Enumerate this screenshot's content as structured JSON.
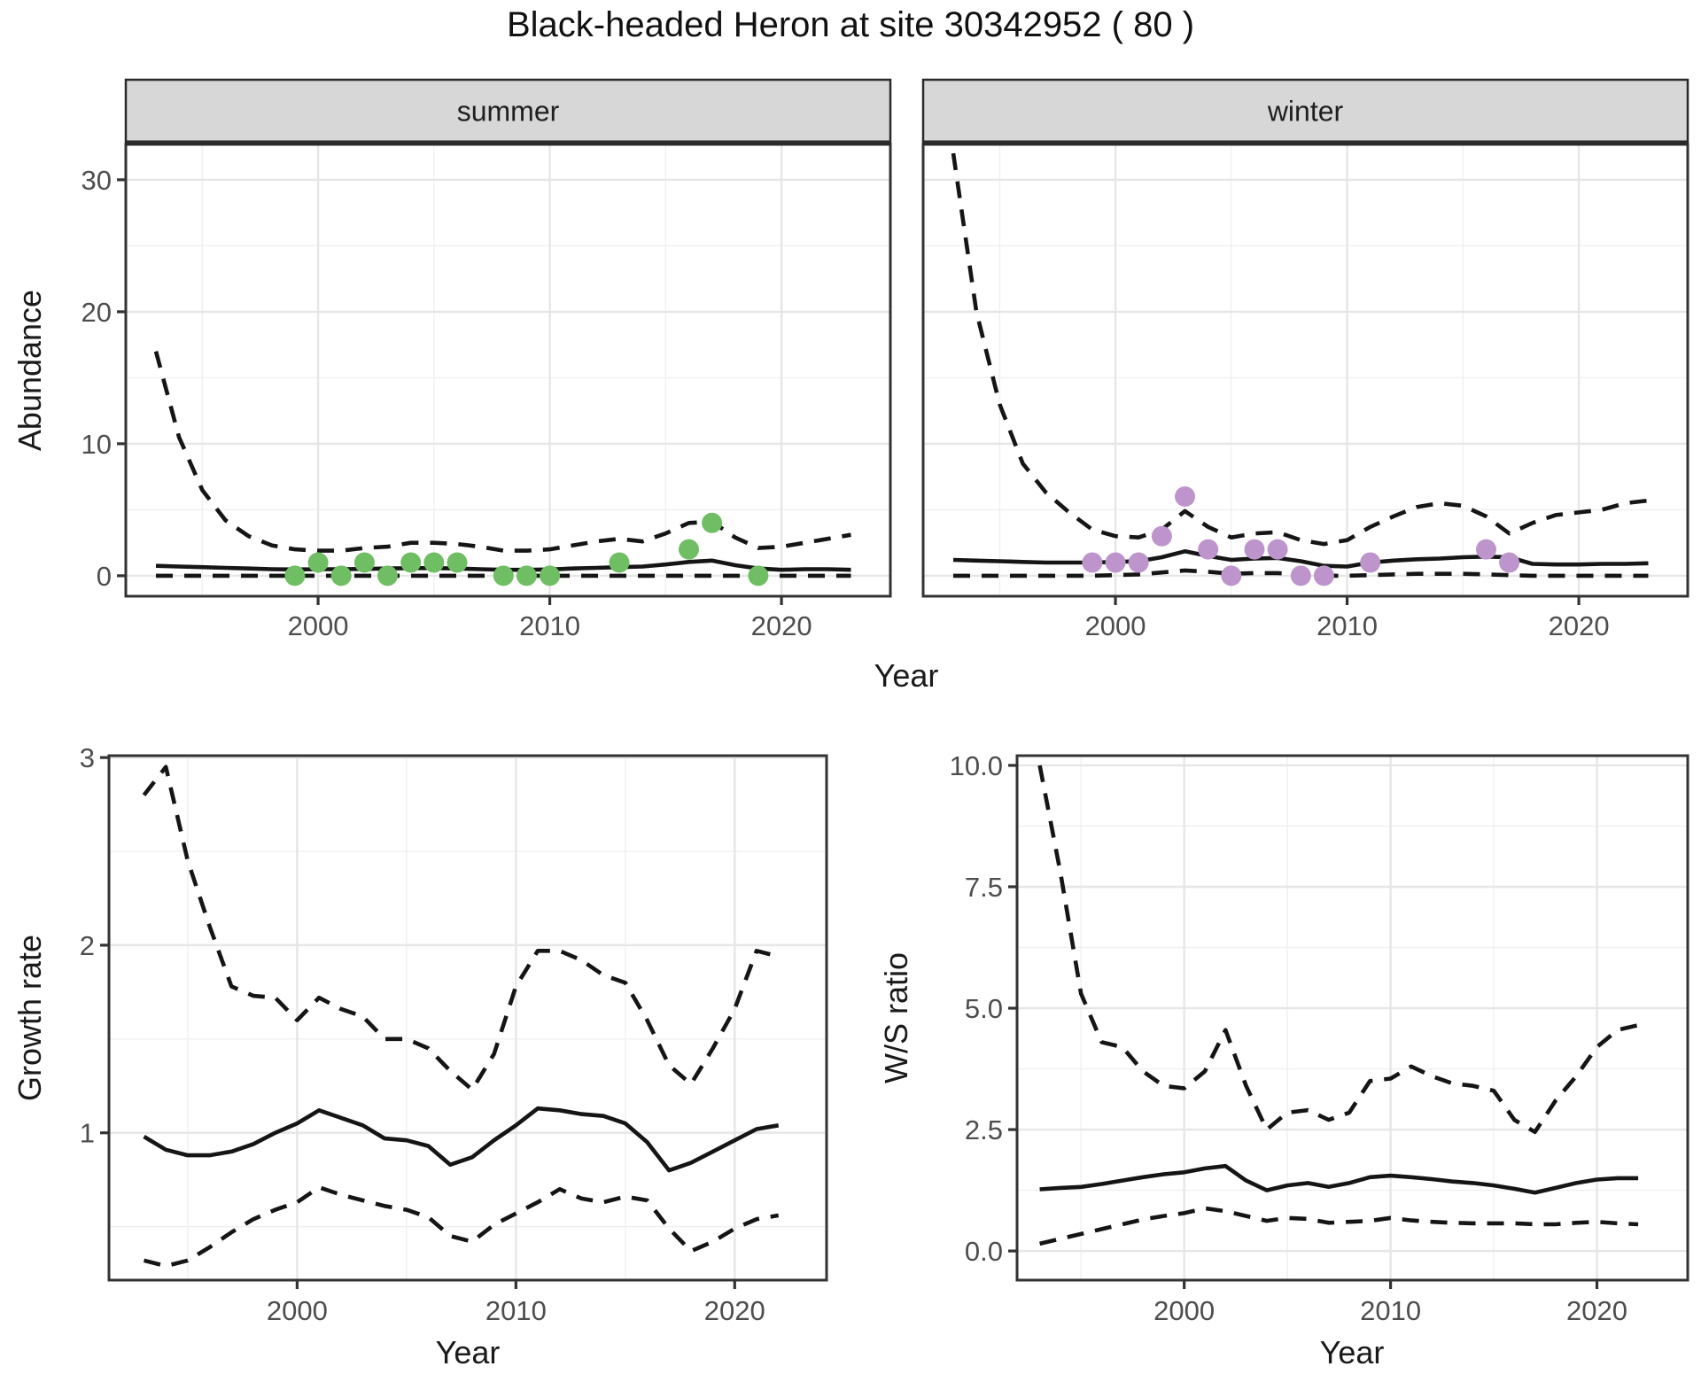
{
  "title": "Black-headed Heron at site 30342952 ( 80 )",
  "labels": {
    "top_y": "Abundance",
    "top_x": "Year",
    "growth_y": "Growth rate",
    "growth_x": "Year",
    "ws_y": "W/S ratio",
    "ws_x": "Year"
  },
  "colors": {
    "line": "#151515",
    "summer_point": "#6fbe63",
    "winter_point": "#bd95cc",
    "tick_text": "#4d4d4d",
    "strip_bg": "#d7d7d7",
    "strip_border": "#2a2a2a",
    "panel_border": "#333333",
    "grid_major": "#e6e6e6",
    "grid_minor": "#f0f0f0"
  },
  "chart_data": [
    {
      "id": "abundance-summer",
      "type": "line",
      "facet_label": "summer",
      "xlabel": "Year",
      "ylabel": "Abundance",
      "x_ticks": [
        2000,
        2010,
        2020
      ],
      "x_tick_labels": [
        "2000",
        "2010",
        "2020"
      ],
      "x_minor_ticks": [
        1995,
        2005,
        2015
      ],
      "y_ticks": [
        0,
        10,
        20,
        30
      ],
      "y_tick_labels": [
        "0",
        "10",
        "20",
        "30"
      ],
      "y_minor_ticks": [
        5,
        15,
        25
      ],
      "xlim": [
        1991.7,
        2024.7
      ],
      "ylim": [
        -1.55,
        32.68
      ],
      "years": [
        1993,
        1994,
        1995,
        1996,
        1997,
        1998,
        1999,
        2000,
        2001,
        2002,
        2003,
        2004,
        2005,
        2006,
        2007,
        2008,
        2009,
        2010,
        2011,
        2012,
        2013,
        2014,
        2015,
        2016,
        2017,
        2018,
        2019,
        2020,
        2021,
        2022,
        2023
      ],
      "series": [
        {
          "name": "ci_upper",
          "style": "dashed",
          "values": [
            17,
            10.5,
            6.5,
            4.2,
            3.0,
            2.3,
            2.0,
            1.9,
            1.9,
            2.1,
            2.2,
            2.5,
            2.5,
            2.4,
            2.2,
            1.9,
            1.9,
            2.0,
            2.3,
            2.6,
            2.8,
            2.6,
            3.2,
            4.0,
            4.1,
            2.9,
            2.1,
            2.2,
            2.5,
            2.8,
            3.1
          ]
        },
        {
          "name": "ci_lower",
          "style": "dashed",
          "values": [
            0,
            0,
            0,
            0,
            0,
            0,
            0,
            0,
            0,
            0,
            0,
            0,
            0,
            0,
            0,
            0,
            0,
            0,
            0,
            0,
            0,
            0,
            0,
            0,
            0,
            0,
            0,
            0,
            0,
            0,
            0
          ]
        },
        {
          "name": "mean",
          "style": "solid",
          "values": [
            0.75,
            0.7,
            0.65,
            0.6,
            0.55,
            0.5,
            0.48,
            0.5,
            0.5,
            0.52,
            0.55,
            0.58,
            0.58,
            0.55,
            0.5,
            0.45,
            0.45,
            0.48,
            0.55,
            0.6,
            0.65,
            0.7,
            0.85,
            1.05,
            1.15,
            0.8,
            0.55,
            0.45,
            0.5,
            0.5,
            0.45
          ]
        }
      ],
      "points": {
        "name": "observed_summer_abundance",
        "color_key": "summer_point",
        "xy": [
          [
            1999,
            0
          ],
          [
            2000,
            1
          ],
          [
            2001,
            0
          ],
          [
            2002,
            1
          ],
          [
            2003,
            0
          ],
          [
            2004,
            1
          ],
          [
            2005,
            1
          ],
          [
            2006,
            1
          ],
          [
            2008,
            0
          ],
          [
            2009,
            0
          ],
          [
            2010,
            0
          ],
          [
            2013,
            1
          ],
          [
            2016,
            2
          ],
          [
            2017,
            4
          ],
          [
            2019,
            0
          ]
        ]
      }
    },
    {
      "id": "abundance-winter",
      "type": "line",
      "facet_label": "winter",
      "xlabel": "Year",
      "ylabel": "Abundance",
      "x_ticks": [
        2000,
        2010,
        2020
      ],
      "x_tick_labels": [
        "2000",
        "2010",
        "2020"
      ],
      "x_minor_ticks": [
        1995,
        2005,
        2015
      ],
      "y_ticks": [
        0,
        10,
        20,
        30
      ],
      "y_tick_labels": [
        "0",
        "10",
        "20",
        "30"
      ],
      "y_minor_ticks": [
        5,
        15,
        25
      ],
      "xlim": [
        1991.7,
        2024.7
      ],
      "ylim": [
        -1.55,
        32.68
      ],
      "years": [
        1993,
        1994,
        1995,
        1996,
        1997,
        1998,
        1999,
        2000,
        2001,
        2002,
        2003,
        2004,
        2005,
        2006,
        2007,
        2008,
        2009,
        2010,
        2011,
        2012,
        2013,
        2014,
        2015,
        2016,
        2017,
        2018,
        2019,
        2020,
        2021,
        2022,
        2023
      ],
      "series": [
        {
          "name": "ci_upper",
          "style": "dashed",
          "values": [
            32,
            20,
            13,
            8.5,
            6.3,
            4.8,
            3.5,
            3.0,
            2.9,
            3.5,
            4.9,
            3.7,
            2.9,
            3.2,
            3.3,
            2.7,
            2.4,
            2.7,
            3.7,
            4.5,
            5.2,
            5.5,
            5.3,
            4.5,
            3.2,
            4.0,
            4.6,
            4.8,
            5.0,
            5.5,
            5.7
          ]
        },
        {
          "name": "ci_lower",
          "style": "dashed",
          "values": [
            0,
            0,
            0,
            0,
            0,
            0,
            0,
            0.05,
            0.1,
            0.25,
            0.4,
            0.3,
            0.15,
            0.2,
            0.2,
            0.1,
            0,
            0,
            0.05,
            0.1,
            0.15,
            0.15,
            0.15,
            0.1,
            0.05,
            0,
            0,
            0,
            0,
            0,
            0
          ]
        },
        {
          "name": "mean",
          "style": "solid",
          "values": [
            1.2,
            1.15,
            1.1,
            1.05,
            1.0,
            1.0,
            1.0,
            1.05,
            1.1,
            1.4,
            1.85,
            1.5,
            1.2,
            1.3,
            1.35,
            1.1,
            0.75,
            0.7,
            1.0,
            1.15,
            1.25,
            1.3,
            1.4,
            1.45,
            1.4,
            0.9,
            0.85,
            0.85,
            0.9,
            0.9,
            0.95
          ]
        }
      ],
      "points": {
        "name": "observed_winter_abundance",
        "color_key": "winter_point",
        "xy": [
          [
            1999,
            1
          ],
          [
            2000,
            1
          ],
          [
            2001,
            1
          ],
          [
            2002,
            3
          ],
          [
            2003,
            6
          ],
          [
            2004,
            2
          ],
          [
            2005,
            0
          ],
          [
            2006,
            2
          ],
          [
            2007,
            2
          ],
          [
            2008,
            0
          ],
          [
            2009,
            0
          ],
          [
            2011,
            1
          ],
          [
            2016,
            2
          ],
          [
            2017,
            1
          ]
        ]
      }
    },
    {
      "id": "growth-rate",
      "type": "line",
      "facet_label": null,
      "xlabel": "Year",
      "ylabel": "Growth rate",
      "x_ticks": [
        2000,
        2010,
        2020
      ],
      "x_tick_labels": [
        "2000",
        "2010",
        "2020"
      ],
      "x_minor_ticks": [
        1995,
        2005,
        2015
      ],
      "y_ticks": [
        1,
        2,
        3
      ],
      "y_tick_labels": [
        "1",
        "2",
        "3"
      ],
      "y_minor_ticks": [
        0.5,
        1.5,
        2.5
      ],
      "xlim": [
        1991.4,
        2024.2
      ],
      "ylim": [
        0.215,
        3.01
      ],
      "years": [
        1993,
        1994,
        1995,
        1996,
        1997,
        1998,
        1999,
        2000,
        2001,
        2002,
        2003,
        2004,
        2005,
        2006,
        2007,
        2008,
        2009,
        2010,
        2011,
        2012,
        2013,
        2014,
        2015,
        2016,
        2017,
        2018,
        2019,
        2020,
        2021,
        2022
      ],
      "series": [
        {
          "name": "ci_upper",
          "style": "dashed",
          "values": [
            2.8,
            2.95,
            2.45,
            2.1,
            1.78,
            1.73,
            1.72,
            1.6,
            1.72,
            1.66,
            1.62,
            1.5,
            1.5,
            1.45,
            1.33,
            1.23,
            1.42,
            1.78,
            1.97,
            1.97,
            1.92,
            1.84,
            1.8,
            1.6,
            1.36,
            1.26,
            1.45,
            1.66,
            1.97,
            1.94
          ]
        },
        {
          "name": "ci_lower",
          "style": "dashed",
          "values": [
            0.32,
            0.29,
            0.32,
            0.39,
            0.47,
            0.54,
            0.59,
            0.63,
            0.71,
            0.67,
            0.64,
            0.61,
            0.59,
            0.55,
            0.45,
            0.42,
            0.51,
            0.57,
            0.63,
            0.7,
            0.65,
            0.63,
            0.66,
            0.64,
            0.49,
            0.37,
            0.42,
            0.49,
            0.54,
            0.56
          ]
        },
        {
          "name": "mean",
          "style": "solid",
          "values": [
            0.98,
            0.91,
            0.88,
            0.88,
            0.9,
            0.94,
            1.0,
            1.05,
            1.12,
            1.08,
            1.04,
            0.97,
            0.96,
            0.93,
            0.83,
            0.87,
            0.96,
            1.04,
            1.13,
            1.12,
            1.1,
            1.09,
            1.05,
            0.95,
            0.8,
            0.84,
            0.9,
            0.96,
            1.02,
            1.04
          ]
        }
      ],
      "points": null
    },
    {
      "id": "ws-ratio",
      "type": "line",
      "facet_label": null,
      "xlabel": "Year",
      "ylabel": "W/S ratio",
      "x_ticks": [
        2000,
        2010,
        2020
      ],
      "x_tick_labels": [
        "2000",
        "2010",
        "2020"
      ],
      "x_minor_ticks": [
        1995,
        2005,
        2015
      ],
      "y_ticks": [
        0,
        2.5,
        5,
        7.5,
        10
      ],
      "y_tick_labels": [
        "0.0",
        "2.5",
        "5.0",
        "7.5",
        "10.0"
      ],
      "y_minor_ticks": [
        1.25,
        3.75,
        6.25,
        8.75
      ],
      "xlim": [
        1991.9,
        2024.4
      ],
      "ylim": [
        -0.6,
        10.2
      ],
      "years": [
        1993,
        1994,
        1995,
        1996,
        1997,
        1998,
        1999,
        2000,
        2001,
        2002,
        2003,
        2004,
        2005,
        2006,
        2007,
        2008,
        2009,
        2010,
        2011,
        2012,
        2013,
        2014,
        2015,
        2016,
        2017,
        2018,
        2019,
        2020,
        2021,
        2022
      ],
      "series": [
        {
          "name": "ci_upper",
          "style": "dashed",
          "values": [
            10.0,
            7.8,
            5.3,
            4.3,
            4.2,
            3.7,
            3.4,
            3.35,
            3.7,
            4.55,
            3.4,
            2.5,
            2.85,
            2.9,
            2.7,
            2.85,
            3.5,
            3.55,
            3.8,
            3.6,
            3.45,
            3.4,
            3.3,
            2.7,
            2.45,
            3.1,
            3.6,
            4.2,
            4.55,
            4.65
          ]
        },
        {
          "name": "ci_lower",
          "style": "dashed",
          "values": [
            0.15,
            0.25,
            0.35,
            0.45,
            0.55,
            0.65,
            0.72,
            0.78,
            0.88,
            0.82,
            0.72,
            0.62,
            0.68,
            0.66,
            0.58,
            0.6,
            0.62,
            0.68,
            0.63,
            0.6,
            0.58,
            0.57,
            0.57,
            0.57,
            0.55,
            0.55,
            0.58,
            0.6,
            0.57,
            0.55
          ]
        },
        {
          "name": "mean",
          "style": "solid",
          "values": [
            1.27,
            1.3,
            1.32,
            1.38,
            1.45,
            1.52,
            1.58,
            1.62,
            1.7,
            1.75,
            1.45,
            1.25,
            1.35,
            1.4,
            1.32,
            1.4,
            1.52,
            1.55,
            1.52,
            1.48,
            1.43,
            1.4,
            1.35,
            1.28,
            1.2,
            1.3,
            1.4,
            1.47,
            1.5,
            1.5
          ]
        }
      ],
      "points": null
    }
  ]
}
